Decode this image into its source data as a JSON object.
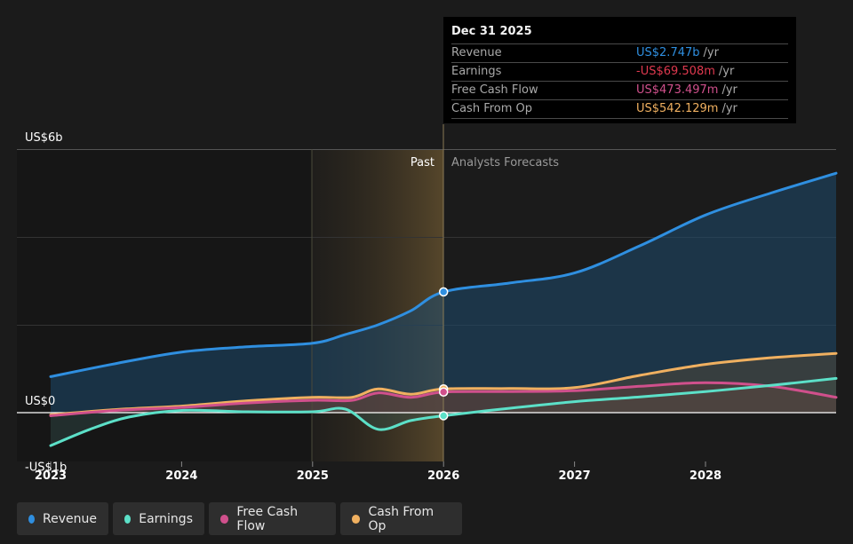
{
  "chart_data": {
    "type": "area",
    "x_ticks": [
      "2023",
      "2024",
      "2025",
      "2026",
      "2027",
      "2028"
    ],
    "y_labels": [
      "US$6b",
      "US$0",
      "-US$1b"
    ],
    "ylim": [
      -1,
      6
    ],
    "divider_labels": {
      "past": "Past",
      "forecast": "Analysts Forecasts"
    },
    "past_region": {
      "start": 2025.0,
      "end": 2026.0
    },
    "series": [
      {
        "name": "Revenue",
        "key": "revenue",
        "color": "#2f8fe0",
        "fill": "#1d4a6e",
        "points": [
          [
            2023.0,
            0.82
          ],
          [
            2023.5,
            1.12
          ],
          [
            2024.0,
            1.38
          ],
          [
            2024.5,
            1.5
          ],
          [
            2025.0,
            1.58
          ],
          [
            2025.25,
            1.78
          ],
          [
            2025.5,
            2.0
          ],
          [
            2025.75,
            2.32
          ],
          [
            2026.0,
            2.75
          ],
          [
            2026.5,
            2.95
          ],
          [
            2027.0,
            3.18
          ],
          [
            2027.5,
            3.8
          ],
          [
            2028.0,
            4.5
          ],
          [
            2028.5,
            5.0
          ],
          [
            2029.0,
            5.45
          ]
        ]
      },
      {
        "name": "Earnings",
        "key": "earnings",
        "color": "#5ce0c8",
        "fill": "#3a5c58",
        "points": [
          [
            2023.0,
            -0.75
          ],
          [
            2023.3,
            -0.38
          ],
          [
            2023.6,
            -0.1
          ],
          [
            2024.0,
            0.05
          ],
          [
            2024.5,
            0.02
          ],
          [
            2025.0,
            0.02
          ],
          [
            2025.25,
            0.08
          ],
          [
            2025.5,
            -0.38
          ],
          [
            2025.75,
            -0.18
          ],
          [
            2026.0,
            -0.07
          ],
          [
            2026.5,
            0.1
          ],
          [
            2027.0,
            0.25
          ],
          [
            2027.5,
            0.36
          ],
          [
            2028.0,
            0.48
          ],
          [
            2028.5,
            0.62
          ],
          [
            2029.0,
            0.78
          ]
        ]
      },
      {
        "name": "Free Cash Flow",
        "key": "fcf",
        "color": "#d0508c",
        "fill": "#6a3040",
        "points": [
          [
            2023.0,
            -0.07
          ],
          [
            2023.5,
            0.05
          ],
          [
            2024.0,
            0.12
          ],
          [
            2024.5,
            0.22
          ],
          [
            2025.0,
            0.28
          ],
          [
            2025.3,
            0.28
          ],
          [
            2025.5,
            0.45
          ],
          [
            2025.75,
            0.35
          ],
          [
            2026.0,
            0.47
          ],
          [
            2026.5,
            0.48
          ],
          [
            2027.0,
            0.5
          ],
          [
            2027.5,
            0.6
          ],
          [
            2028.0,
            0.68
          ],
          [
            2028.5,
            0.6
          ],
          [
            2029.0,
            0.35
          ]
        ]
      },
      {
        "name": "Cash From Op",
        "key": "cfo",
        "color": "#f0b060",
        "fill": "#6a5030",
        "points": [
          [
            2023.0,
            -0.05
          ],
          [
            2023.5,
            0.07
          ],
          [
            2024.0,
            0.15
          ],
          [
            2024.5,
            0.27
          ],
          [
            2025.0,
            0.35
          ],
          [
            2025.3,
            0.35
          ],
          [
            2025.5,
            0.54
          ],
          [
            2025.75,
            0.42
          ],
          [
            2026.0,
            0.54
          ],
          [
            2026.5,
            0.55
          ],
          [
            2027.0,
            0.57
          ],
          [
            2027.5,
            0.85
          ],
          [
            2028.0,
            1.1
          ],
          [
            2028.5,
            1.25
          ],
          [
            2029.0,
            1.35
          ]
        ]
      }
    ]
  },
  "tooltip": {
    "date": "Dec 31 2025",
    "rows": [
      {
        "label": "Revenue",
        "value": "US$2.747b",
        "unit": "/yr",
        "color": "#2f8fe0"
      },
      {
        "label": "Earnings",
        "value": "-US$69.508m",
        "unit": "/yr",
        "color": "#e0394f"
      },
      {
        "label": "Free Cash Flow",
        "value": "US$473.497m",
        "unit": "/yr",
        "color": "#d0508c"
      },
      {
        "label": "Cash From Op",
        "value": "US$542.129m",
        "unit": "/yr",
        "color": "#f0b060"
      }
    ]
  },
  "legend": [
    {
      "label": "Revenue",
      "color": "#2f8fe0"
    },
    {
      "label": "Earnings",
      "color": "#5ce0c8"
    },
    {
      "label": "Free Cash Flow",
      "color": "#d0508c"
    },
    {
      "label": "Cash From Op",
      "color": "#f0b060"
    }
  ]
}
